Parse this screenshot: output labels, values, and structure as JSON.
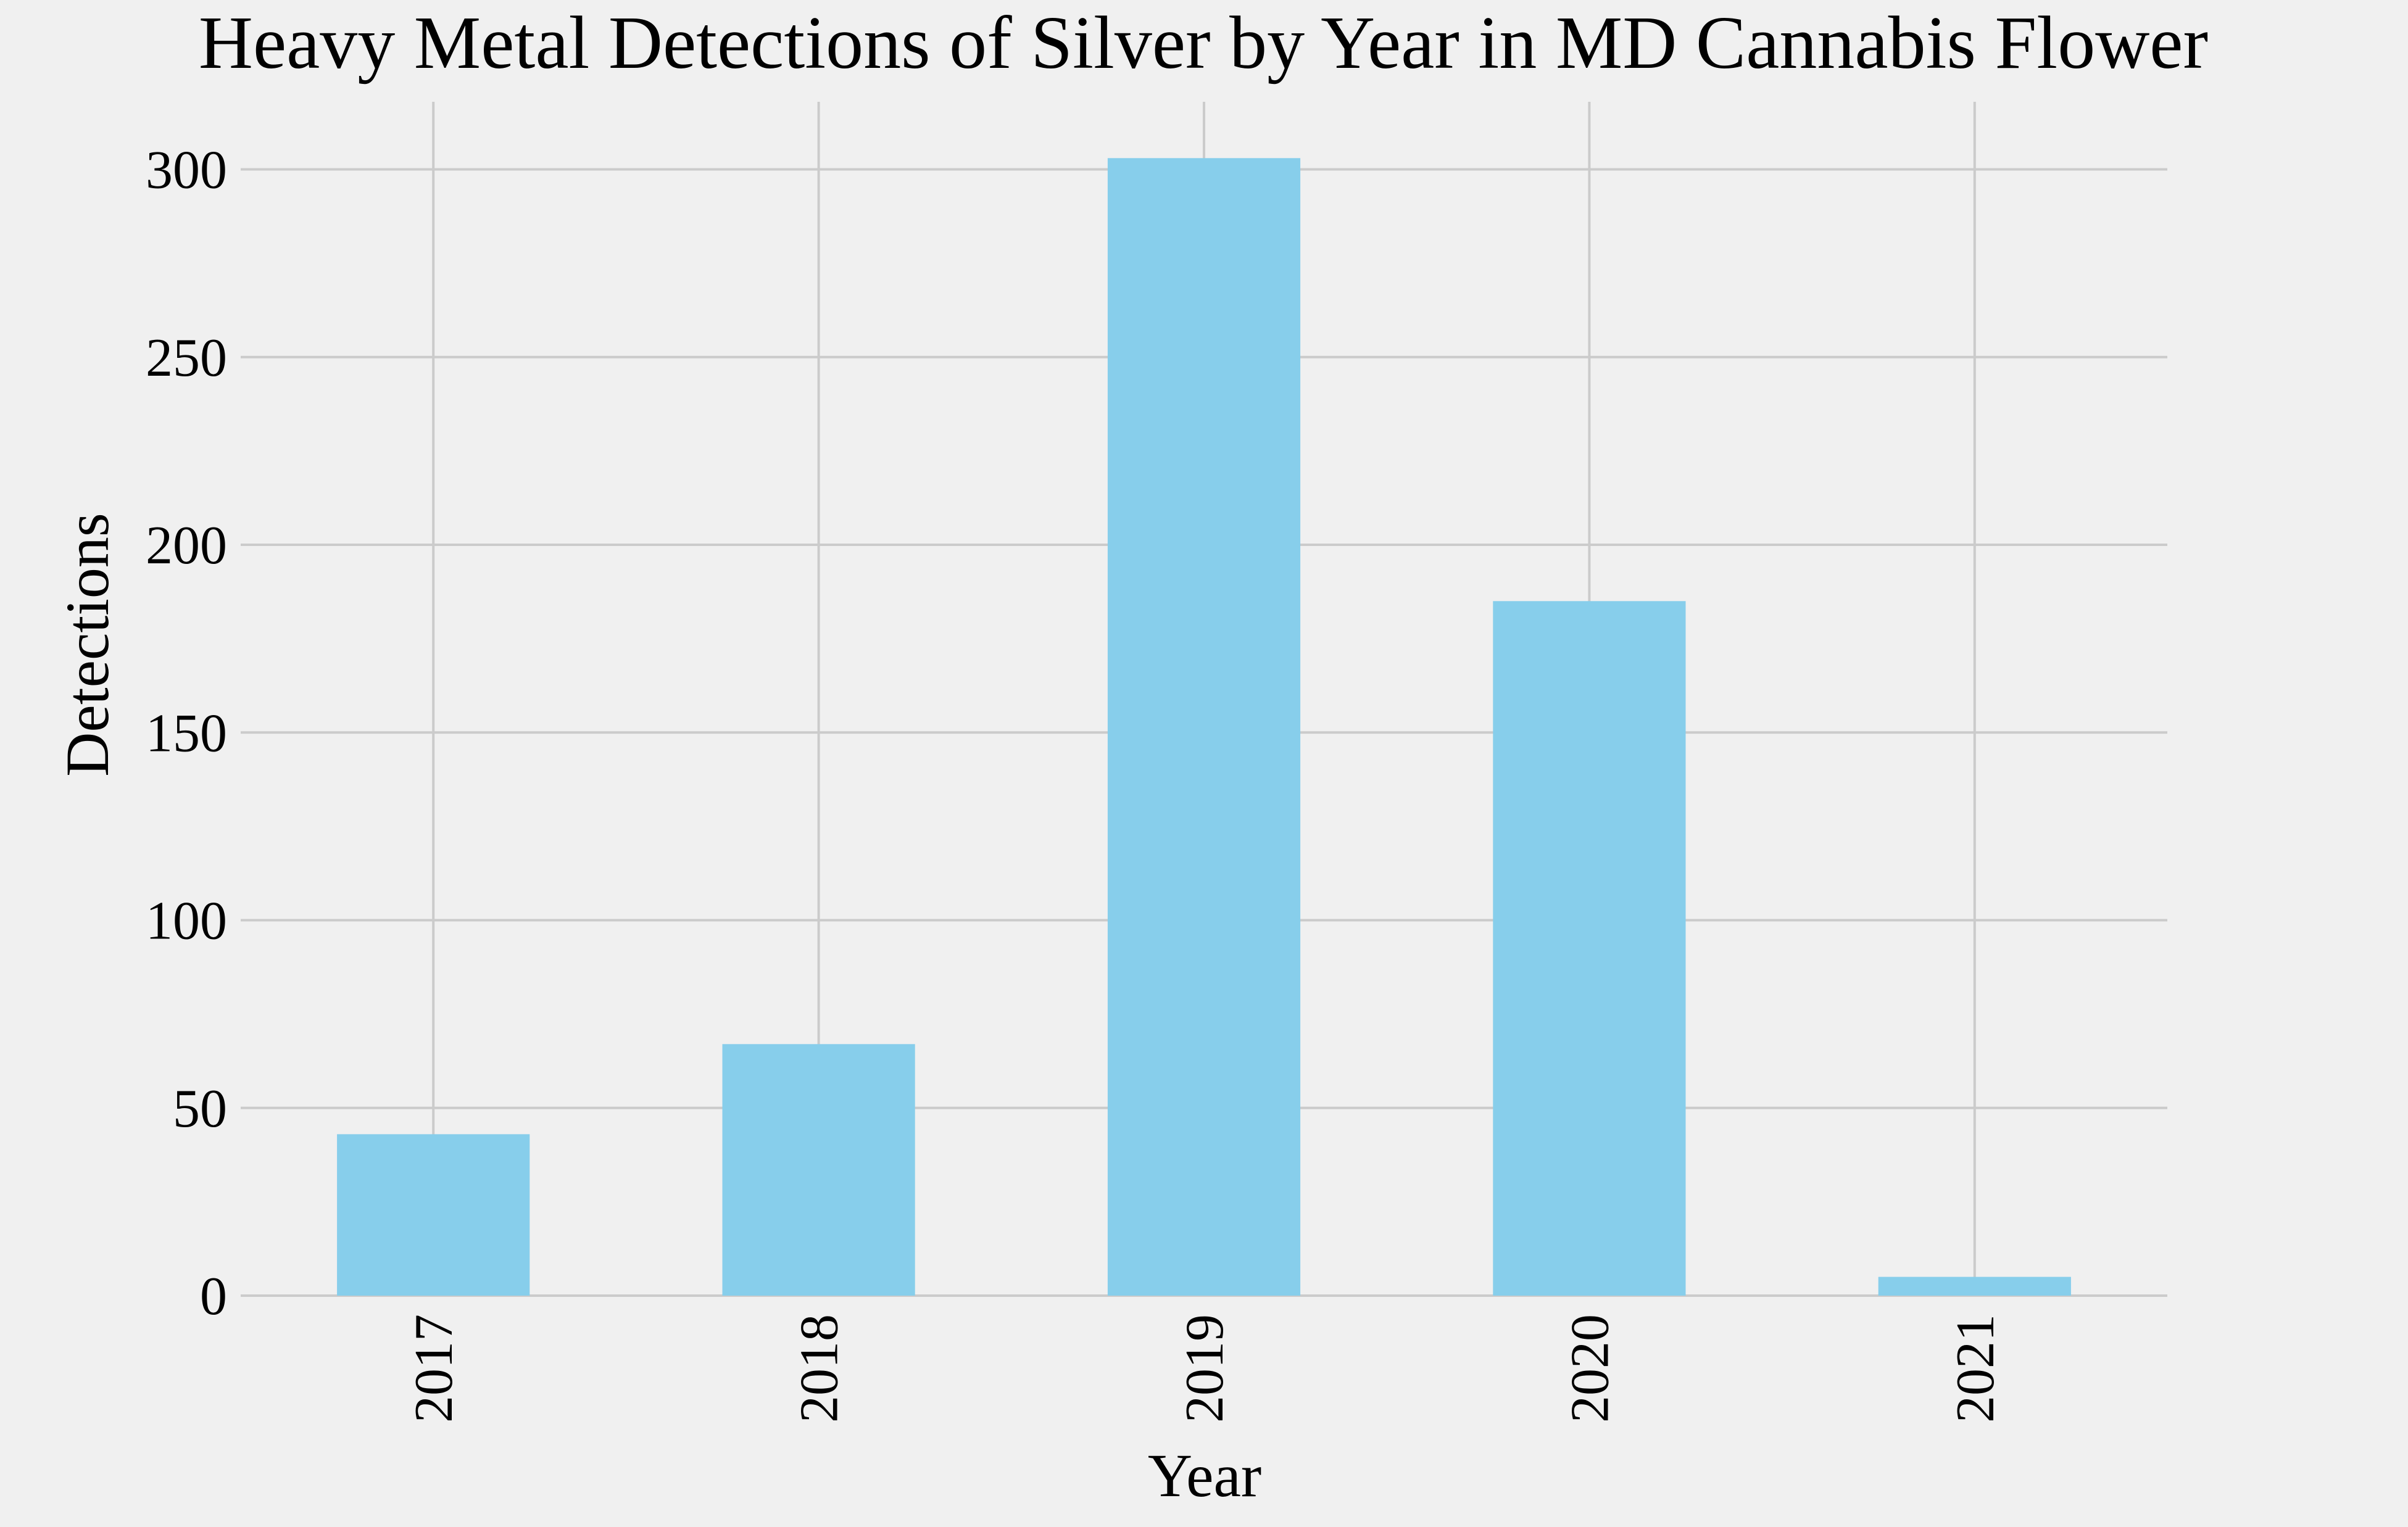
{
  "chart_data": {
    "type": "bar",
    "title": "Heavy Metal Detections of Silver by Year in MD Cannabis Flower",
    "xlabel": "Year",
    "ylabel": "Detections",
    "categories": [
      "2017",
      "2018",
      "2019",
      "2020",
      "2021"
    ],
    "values": [
      43,
      67,
      303,
      185,
      5
    ],
    "ylim": [
      0,
      318
    ],
    "yticks": [
      0,
      50,
      100,
      150,
      200,
      250,
      300
    ],
    "grid": true,
    "legend": "none",
    "bar_color": "#87ceeb",
    "background_color": "#f0f0f0",
    "grid_color": "#cbcbcb"
  }
}
